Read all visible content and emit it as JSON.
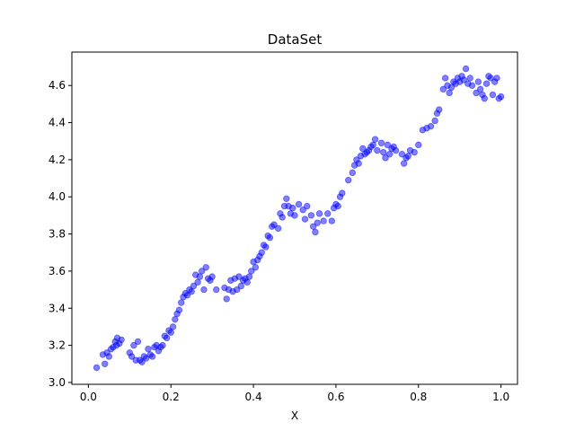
{
  "chart_data": {
    "type": "scatter",
    "title": "DataSet",
    "xlabel": "X",
    "ylabel": "",
    "xlim": [
      -0.04,
      1.04
    ],
    "ylim": [
      2.99,
      4.78
    ],
    "xticks": [
      0.0,
      0.2,
      0.4,
      0.6,
      0.8,
      1.0
    ],
    "xtick_labels": [
      "0.0",
      "0.2",
      "0.4",
      "0.6",
      "0.8",
      "1.0"
    ],
    "yticks": [
      3.0,
      3.2,
      3.4,
      3.6,
      3.8,
      4.0,
      4.2,
      4.4,
      4.6
    ],
    "ytick_labels": [
      "3.0",
      "3.2",
      "3.4",
      "3.6",
      "3.8",
      "4.0",
      "4.2",
      "4.4",
      "4.6"
    ],
    "grid": false,
    "marker_color": "#0000ff",
    "marker_alpha": 0.5,
    "series": [
      {
        "x": [
          0.02,
          0.035,
          0.04,
          0.045,
          0.05,
          0.055,
          0.06,
          0.065,
          0.068,
          0.07,
          0.075,
          0.08,
          0.1,
          0.105,
          0.11,
          0.115,
          0.12,
          0.125,
          0.13,
          0.135,
          0.14,
          0.145,
          0.15,
          0.155,
          0.16,
          0.165,
          0.17,
          0.175,
          0.18,
          0.185,
          0.19,
          0.195,
          0.2,
          0.205,
          0.21,
          0.215,
          0.22,
          0.225,
          0.23,
          0.235,
          0.24,
          0.245,
          0.25,
          0.255,
          0.26,
          0.265,
          0.27,
          0.275,
          0.28,
          0.285,
          0.29,
          0.295,
          0.3,
          0.31,
          0.33,
          0.335,
          0.34,
          0.345,
          0.35,
          0.355,
          0.36,
          0.365,
          0.37,
          0.375,
          0.38,
          0.385,
          0.39,
          0.395,
          0.4,
          0.405,
          0.41,
          0.415,
          0.42,
          0.425,
          0.43,
          0.435,
          0.44,
          0.445,
          0.45,
          0.46,
          0.465,
          0.47,
          0.475,
          0.48,
          0.485,
          0.49,
          0.495,
          0.5,
          0.51,
          0.52,
          0.525,
          0.53,
          0.54,
          0.545,
          0.55,
          0.555,
          0.56,
          0.57,
          0.58,
          0.59,
          0.595,
          0.6,
          0.605,
          0.61,
          0.615,
          0.63,
          0.64,
          0.645,
          0.65,
          0.655,
          0.66,
          0.665,
          0.67,
          0.675,
          0.68,
          0.685,
          0.69,
          0.695,
          0.7,
          0.71,
          0.715,
          0.72,
          0.725,
          0.73,
          0.735,
          0.74,
          0.745,
          0.76,
          0.765,
          0.77,
          0.775,
          0.78,
          0.79,
          0.8,
          0.81,
          0.82,
          0.83,
          0.84,
          0.845,
          0.85,
          0.86,
          0.865,
          0.87,
          0.875,
          0.88,
          0.885,
          0.89,
          0.895,
          0.9,
          0.905,
          0.91,
          0.915,
          0.92,
          0.925,
          0.93,
          0.94,
          0.945,
          0.95,
          0.955,
          0.96,
          0.965,
          0.97,
          0.975,
          0.98,
          0.985,
          0.99,
          0.995,
          1.0
        ],
        "y": [
          3.08,
          3.15,
          3.1,
          3.16,
          3.14,
          3.18,
          3.19,
          3.22,
          3.2,
          3.24,
          3.21,
          3.23,
          3.16,
          3.14,
          3.2,
          3.12,
          3.22,
          3.12,
          3.11,
          3.14,
          3.13,
          3.18,
          3.15,
          3.14,
          3.19,
          3.2,
          3.17,
          3.19,
          3.2,
          3.25,
          3.24,
          3.28,
          3.27,
          3.3,
          3.34,
          3.37,
          3.39,
          3.43,
          3.46,
          3.48,
          3.47,
          3.5,
          3.49,
          3.52,
          3.58,
          3.54,
          3.57,
          3.6,
          3.5,
          3.62,
          3.56,
          3.55,
          3.57,
          3.5,
          3.51,
          3.45,
          3.5,
          3.55,
          3.49,
          3.56,
          3.5,
          3.57,
          3.52,
          3.55,
          3.56,
          3.54,
          3.57,
          3.6,
          3.65,
          3.62,
          3.66,
          3.68,
          3.7,
          3.74,
          3.73,
          3.79,
          3.78,
          3.84,
          3.85,
          3.83,
          3.91,
          3.89,
          3.95,
          3.99,
          3.95,
          3.91,
          3.94,
          3.9,
          3.96,
          3.93,
          3.88,
          3.95,
          3.9,
          3.84,
          3.81,
          3.86,
          3.91,
          3.87,
          3.91,
          3.87,
          3.94,
          3.96,
          3.95,
          4.0,
          4.02,
          4.09,
          4.13,
          4.17,
          4.2,
          4.18,
          4.22,
          4.26,
          4.23,
          4.24,
          4.25,
          4.27,
          4.28,
          4.31,
          4.25,
          4.29,
          4.24,
          4.21,
          4.28,
          4.23,
          4.26,
          4.27,
          4.25,
          4.23,
          4.18,
          4.21,
          4.22,
          4.25,
          4.24,
          4.28,
          4.36,
          4.37,
          4.38,
          4.41,
          4.45,
          4.47,
          4.58,
          4.64,
          4.6,
          4.56,
          4.59,
          4.62,
          4.61,
          4.64,
          4.62,
          4.65,
          4.63,
          4.69,
          4.61,
          4.64,
          4.6,
          4.56,
          4.62,
          4.58,
          4.55,
          4.53,
          4.61,
          4.65,
          4.64,
          4.55,
          4.62,
          4.64,
          4.53,
          4.54
        ]
      }
    ]
  }
}
